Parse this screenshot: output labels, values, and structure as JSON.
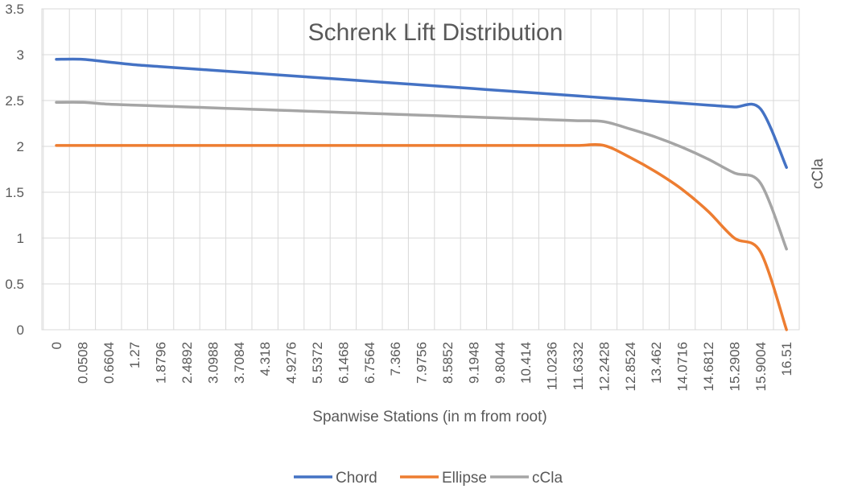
{
  "chart_data": {
    "type": "line",
    "title": "Schrenk Lift Distribution",
    "xlabel": "Spanwise Stations (in m from root)",
    "ylabel": "",
    "y2label": "cCla",
    "ylim": [
      0,
      3.5
    ],
    "yticks": [
      "0",
      "0.5",
      "1",
      "1.5",
      "2",
      "2.5",
      "3",
      "3.5"
    ],
    "grid": true,
    "legend_position": "bottom",
    "categories": [
      "0",
      "0.0508",
      "0.6604",
      "1.27",
      "1.8796",
      "2.4892",
      "3.0988",
      "3.7084",
      "4.318",
      "4.9276",
      "5.5372",
      "6.1468",
      "6.7564",
      "7.366",
      "7.9756",
      "8.5852",
      "9.1948",
      "9.8044",
      "10.414",
      "11.0236",
      "11.6332",
      "12.2428",
      "12.8524",
      "13.462",
      "14.0716",
      "14.6812",
      "15.2908",
      "15.9004",
      "16.51"
    ],
    "series": [
      {
        "name": "Chord",
        "color": "#4472C4",
        "values": [
          2.95,
          2.95,
          2.92,
          2.89,
          2.87,
          2.85,
          2.83,
          2.81,
          2.79,
          2.77,
          2.75,
          2.73,
          2.71,
          2.69,
          2.67,
          2.65,
          2.63,
          2.61,
          2.59,
          2.57,
          2.55,
          2.53,
          2.51,
          2.49,
          2.47,
          2.45,
          2.43,
          2.41,
          1.77
        ]
      },
      {
        "name": "Ellipse",
        "color": "#ED7D31",
        "values": [
          2.01,
          2.01,
          2.01,
          2.01,
          2.01,
          2.01,
          2.01,
          2.01,
          2.01,
          2.01,
          2.01,
          2.01,
          2.01,
          2.01,
          2.01,
          2.01,
          2.01,
          2.01,
          2.01,
          2.01,
          2.01,
          2.01,
          1.88,
          1.72,
          1.53,
          1.29,
          1.0,
          0.85,
          0.0
        ]
      },
      {
        "name": "cCla",
        "color": "#A5A5A5",
        "values": [
          2.48,
          2.48,
          2.46,
          2.45,
          2.44,
          2.43,
          2.42,
          2.41,
          2.4,
          2.39,
          2.38,
          2.37,
          2.36,
          2.35,
          2.34,
          2.33,
          2.32,
          2.31,
          2.3,
          2.29,
          2.28,
          2.27,
          2.19,
          2.1,
          1.99,
          1.86,
          1.71,
          1.6,
          0.88
        ]
      }
    ]
  }
}
